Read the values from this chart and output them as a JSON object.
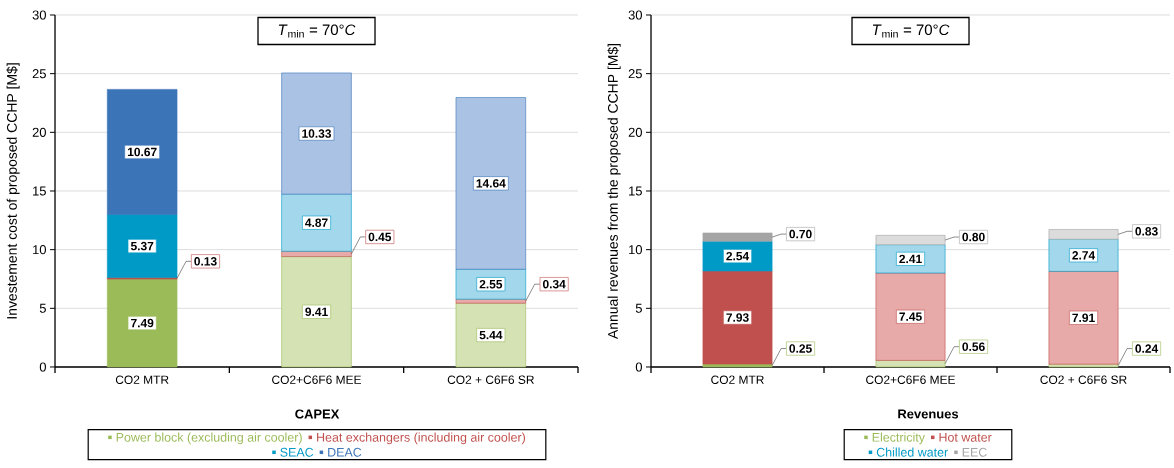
{
  "chart_data": [
    {
      "type": "bar",
      "stacked": true,
      "xlabel": "CAPEX",
      "ylabel": "Investement cost of proposed CCHP [M$]",
      "annotations": [
        "*T*$_{min}$ = 70°*C*"
      ],
      "categories": [
        "CO2 MTR",
        "CO2+C6F6 MEE",
        "CO2 + C6F6  SR"
      ],
      "series": [
        {
          "name": "Power block (excluding air cooler)",
          "color": "#9bbb59",
          "colors": [
            "#9bbb59",
            "#d4e2b4",
            "#d4e2b4"
          ],
          "values": [
            7.49,
            9.41,
            5.44
          ],
          "value_labels": [
            "7.49",
            "9.41",
            "5.44"
          ]
        },
        {
          "name": "Heat exchangers (including air cooler)",
          "color": "#c0504d",
          "colors": [
            "#c0504d",
            "#e8aaa8",
            "#e8aaa8"
          ],
          "values": [
            0.13,
            0.45,
            0.34
          ],
          "value_labels": [
            "0.13",
            "0.45",
            "0.34"
          ]
        },
        {
          "name": "SEAC",
          "color": "#009ac6",
          "colors": [
            "#009ac6",
            "#a3d8ec",
            "#a3d8ec"
          ],
          "values": [
            5.37,
            4.87,
            2.55
          ],
          "value_labels": [
            "5.37",
            "4.87",
            "2.55"
          ]
        },
        {
          "name": "DEAC",
          "color": "#3b74b7",
          "colors": [
            "#3b74b7",
            "#aac2e4",
            "#aac2e4"
          ],
          "values": [
            10.67,
            10.33,
            14.64
          ],
          "value_labels": [
            "10.67",
            "10.33",
            "14.64"
          ]
        }
      ],
      "ylim": [
        0,
        30
      ],
      "yticks": [
        0,
        5,
        10,
        15,
        20,
        25,
        30
      ],
      "grid": "y",
      "legend": "bottom"
    },
    {
      "type": "bar",
      "stacked": true,
      "xlabel": "Revenues",
      "ylabel": "Annual revenues from the proposed CCHP [M$]",
      "annotations": [
        "*T*$_{min}$ = 70°*C*"
      ],
      "categories": [
        "CO2 MTR",
        "CO2+C6F6 MEE",
        "CO2 + C6F6  SR"
      ],
      "series": [
        {
          "name": "Electricity",
          "color": "#9bbb59",
          "colors": [
            "#9bbb59",
            "#d4e2b4",
            "#d4e2b4"
          ],
          "values": [
            0.25,
            0.56,
            0.24
          ],
          "value_labels": [
            "0.25",
            "0.56",
            "0.24"
          ]
        },
        {
          "name": "Hot water",
          "color": "#c0504d",
          "colors": [
            "#c0504d",
            "#e8aaa8",
            "#e8aaa8"
          ],
          "values": [
            7.93,
            7.45,
            7.91
          ],
          "value_labels": [
            "7.93",
            "7.45",
            "7.91"
          ]
        },
        {
          "name": "Chilled water",
          "color": "#009ac6",
          "colors": [
            "#009ac6",
            "#a3d8ec",
            "#a3d8ec"
          ],
          "values": [
            2.54,
            2.41,
            2.74
          ],
          "value_labels": [
            "2.54",
            "2.41",
            "2.74"
          ]
        },
        {
          "name": "EEC",
          "color": "#a5a5a5",
          "colors": [
            "#a5a5a5",
            "#dcdcdc",
            "#dcdcdc"
          ],
          "values": [
            0.7,
            0.8,
            0.83
          ],
          "value_labels": [
            "0.70",
            "0.80",
            "0.83"
          ]
        }
      ],
      "ylim": [
        0,
        30
      ],
      "yticks": [
        0,
        5,
        10,
        15,
        20,
        25,
        30
      ],
      "grid": "y",
      "legend": "bottom"
    }
  ]
}
